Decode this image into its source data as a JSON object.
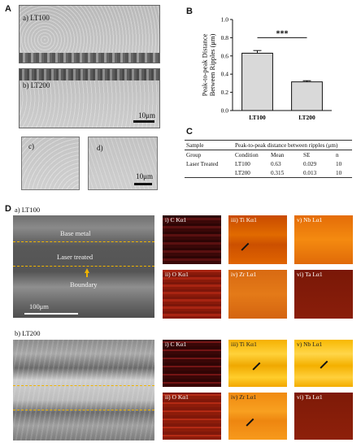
{
  "panel_A": {
    "letter": "A",
    "image_a_label": "a) LT100",
    "image_b_label": "b) LT200",
    "image_b_scale": "10μm",
    "image_c_label": "c)",
    "image_d_label": "d)",
    "image_d_scale": "10μm"
  },
  "panel_B": {
    "letter": "B",
    "significance": "***",
    "chart_data": {
      "type": "bar",
      "categories": [
        "LT100",
        "LT200"
      ],
      "values": [
        0.63,
        0.315
      ],
      "errors": [
        0.029,
        0.013
      ],
      "ylabel": "Peak-to-peak Distance Between Ripples (μm)",
      "yticks": [
        "0.0",
        "0.2",
        "0.4",
        "0.6",
        "0.8",
        "1.0"
      ],
      "ylim": [
        0,
        1.0
      ],
      "bar_color": "#d9d9d9"
    }
  },
  "panel_C": {
    "letter": "C",
    "header": {
      "sample": "Sample",
      "measure": "Peak-to-peak distance between ripples (μm)"
    },
    "subheader": [
      "Group",
      "Condition",
      "Mean",
      "SE",
      "n"
    ],
    "rows": [
      [
        "Laser Treated",
        "LT100",
        "0.63",
        "0.029",
        "10"
      ],
      [
        "",
        "LT200",
        "0.315",
        "0.013",
        "10"
      ]
    ]
  },
  "panel_D": {
    "letter": "D",
    "a_label": "a) LT100",
    "b_label": "b) LT200",
    "base_metal": "Base metal",
    "laser_treated": "Laser treated",
    "boundary": "Boundary",
    "scale": "100μm",
    "maps_a": [
      {
        "label": "i) C Kα1"
      },
      {
        "label": "iii) Ti Kα1"
      },
      {
        "label": "v) Nb Lα1"
      },
      {
        "label": "ii) O Kα1"
      },
      {
        "label": "iv) Zr Lα1"
      },
      {
        "label": "vi) Ta Lα1"
      }
    ],
    "maps_b": [
      {
        "label": "i) C Kα1"
      },
      {
        "label": "iii) Ti Kα1"
      },
      {
        "label": "v) Nb Lα1"
      },
      {
        "label": "ii) O Kα1"
      },
      {
        "label": "iv) Zr Lα1"
      },
      {
        "label": "vi) Ta Lα1"
      }
    ],
    "boundary_color": "#f0b400"
  }
}
